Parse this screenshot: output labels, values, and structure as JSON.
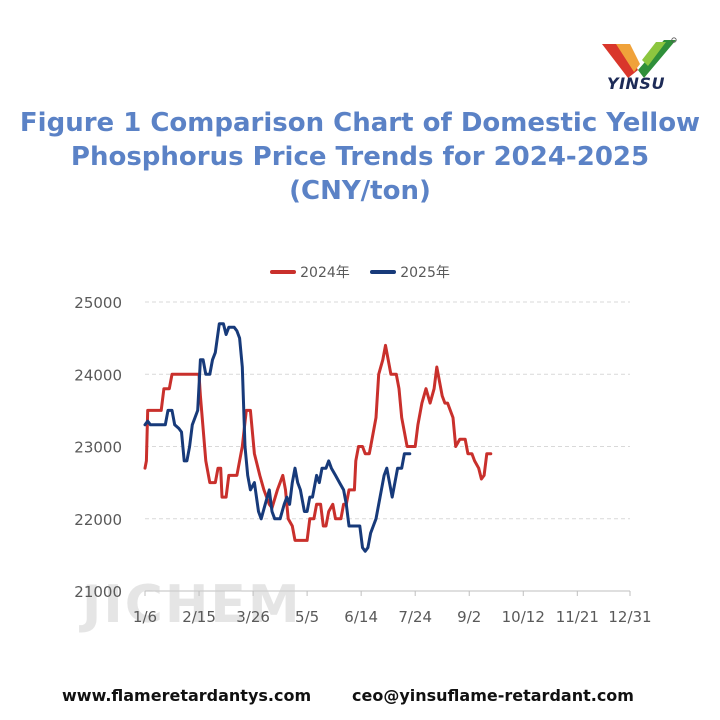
{
  "brand": {
    "name": "YINSU"
  },
  "title_lines": [
    "Figure 1  Comparison Chart of Domestic Yellow",
    "Phosphorus Price Trends for 2024-2025",
    "(CNY/ton)"
  ],
  "watermark": "JICHEM",
  "footer": {
    "website": "www.flameretardantys.com",
    "email": "ceo@yinsuflame-retardant.com"
  },
  "colors": {
    "series_2024": "#c9302c",
    "series_2025": "#173a7a",
    "title": "#5b82c6",
    "grid": "#d9d9d9",
    "axis_text": "#595959"
  },
  "chart_data": {
    "type": "line",
    "ylim": [
      21000,
      25000
    ],
    "yticks": [
      21000,
      22000,
      23000,
      24000,
      25000
    ],
    "xlim": [
      0,
      359
    ],
    "xticks": [
      {
        "label": "1/6",
        "day": 0
      },
      {
        "label": "2/15",
        "day": 40
      },
      {
        "label": "3/26",
        "day": 80
      },
      {
        "label": "5/5",
        "day": 120
      },
      {
        "label": "6/14",
        "day": 160
      },
      {
        "label": "7/24",
        "day": 200
      },
      {
        "label": "9/2",
        "day": 240
      },
      {
        "label": "10/12",
        "day": 280
      },
      {
        "label": "11/21",
        "day": 320
      },
      {
        "label": "12/31",
        "day": 359
      }
    ],
    "grid": "horizontal",
    "legend": "top",
    "series": [
      {
        "name": "2024年",
        "points": [
          [
            0,
            22700
          ],
          [
            1,
            22800
          ],
          [
            2,
            23500
          ],
          [
            12,
            23500
          ],
          [
            14,
            23800
          ],
          [
            18,
            23800
          ],
          [
            20,
            24000
          ],
          [
            40,
            24000
          ],
          [
            41,
            23700
          ],
          [
            45,
            22800
          ],
          [
            48,
            22500
          ],
          [
            52,
            22500
          ],
          [
            54,
            22700
          ],
          [
            56,
            22700
          ],
          [
            57,
            22300
          ],
          [
            60,
            22300
          ],
          [
            62,
            22600
          ],
          [
            68,
            22600
          ],
          [
            70,
            22800
          ],
          [
            72,
            23000
          ],
          [
            75,
            23500
          ],
          [
            78,
            23500
          ],
          [
            81,
            22900
          ],
          [
            85,
            22600
          ],
          [
            88,
            22400
          ],
          [
            92,
            22200
          ],
          [
            94,
            22150
          ],
          [
            98,
            22400
          ],
          [
            102,
            22600
          ],
          [
            104,
            22400
          ],
          [
            106,
            22000
          ],
          [
            109,
            21900
          ],
          [
            111,
            21700
          ],
          [
            120,
            21700
          ],
          [
            122,
            22000
          ],
          [
            125,
            22000
          ],
          [
            127,
            22200
          ],
          [
            130,
            22200
          ],
          [
            132,
            21900
          ],
          [
            134,
            21900
          ],
          [
            136,
            22100
          ],
          [
            139,
            22200
          ],
          [
            141,
            22000
          ],
          [
            145,
            22000
          ],
          [
            147,
            22200
          ],
          [
            149,
            22200
          ],
          [
            151,
            22400
          ],
          [
            155,
            22400
          ],
          [
            156,
            22800
          ],
          [
            158,
            23000
          ],
          [
            161,
            23000
          ],
          [
            163,
            22900
          ],
          [
            166,
            22900
          ],
          [
            168,
            23100
          ],
          [
            171,
            23400
          ],
          [
            173,
            24000
          ],
          [
            176,
            24200
          ],
          [
            178,
            24400
          ],
          [
            180,
            24200
          ],
          [
            182,
            24000
          ],
          [
            186,
            24000
          ],
          [
            188,
            23800
          ],
          [
            190,
            23400
          ],
          [
            192,
            23200
          ],
          [
            194,
            23000
          ],
          [
            200,
            23000
          ],
          [
            202,
            23300
          ],
          [
            205,
            23600
          ],
          [
            208,
            23800
          ],
          [
            211,
            23600
          ],
          [
            214,
            23800
          ],
          [
            216,
            24100
          ],
          [
            218,
            23900
          ],
          [
            220,
            23700
          ],
          [
            222,
            23600
          ],
          [
            224,
            23600
          ],
          [
            226,
            23500
          ],
          [
            228,
            23400
          ],
          [
            230,
            23000
          ],
          [
            233,
            23100
          ],
          [
            237,
            23100
          ],
          [
            239,
            22900
          ],
          [
            242,
            22900
          ],
          [
            244,
            22800
          ],
          [
            247,
            22700
          ],
          [
            249,
            22550
          ],
          [
            251,
            22600
          ],
          [
            253,
            22900
          ],
          [
            256,
            22900
          ]
        ]
      },
      {
        "name": "2025年",
        "points": [
          [
            0,
            23300
          ],
          [
            2,
            23350
          ],
          [
            4,
            23300
          ],
          [
            15,
            23300
          ],
          [
            17,
            23500
          ],
          [
            20,
            23500
          ],
          [
            22,
            23300
          ],
          [
            25,
            23250
          ],
          [
            27,
            23200
          ],
          [
            29,
            22800
          ],
          [
            31,
            22800
          ],
          [
            33,
            23000
          ],
          [
            35,
            23300
          ],
          [
            37,
            23400
          ],
          [
            39,
            23500
          ],
          [
            41,
            24200
          ],
          [
            43,
            24200
          ],
          [
            45,
            24000
          ],
          [
            48,
            24000
          ],
          [
            50,
            24200
          ],
          [
            52,
            24300
          ],
          [
            55,
            24700
          ],
          [
            58,
            24700
          ],
          [
            60,
            24550
          ],
          [
            62,
            24650
          ],
          [
            66,
            24650
          ],
          [
            68,
            24600
          ],
          [
            70,
            24500
          ],
          [
            72,
            24100
          ],
          [
            74,
            23000
          ],
          [
            76,
            22600
          ],
          [
            78,
            22400
          ],
          [
            81,
            22500
          ],
          [
            84,
            22100
          ],
          [
            86,
            22000
          ],
          [
            89,
            22200
          ],
          [
            92,
            22400
          ],
          [
            94,
            22100
          ],
          [
            96,
            22000
          ],
          [
            100,
            22000
          ],
          [
            103,
            22200
          ],
          [
            105,
            22300
          ],
          [
            107,
            22200
          ],
          [
            109,
            22500
          ],
          [
            111,
            22700
          ],
          [
            113,
            22500
          ],
          [
            115,
            22400
          ],
          [
            118,
            22100
          ],
          [
            120,
            22100
          ],
          [
            122,
            22300
          ],
          [
            124,
            22300
          ],
          [
            127,
            22600
          ],
          [
            129,
            22500
          ],
          [
            131,
            22700
          ],
          [
            134,
            22700
          ],
          [
            136,
            22800
          ],
          [
            138,
            22700
          ],
          [
            141,
            22600
          ],
          [
            144,
            22500
          ],
          [
            147,
            22400
          ],
          [
            149,
            22200
          ],
          [
            151,
            21900
          ],
          [
            159,
            21900
          ],
          [
            161,
            21600
          ],
          [
            163,
            21550
          ],
          [
            165,
            21600
          ],
          [
            167,
            21800
          ],
          [
            169,
            21900
          ],
          [
            171,
            22000
          ],
          [
            173,
            22200
          ],
          [
            175,
            22400
          ],
          [
            177,
            22600
          ],
          [
            179,
            22700
          ],
          [
            181,
            22500
          ],
          [
            183,
            22300
          ],
          [
            185,
            22500
          ],
          [
            187,
            22700
          ],
          [
            190,
            22700
          ],
          [
            192,
            22900
          ],
          [
            196,
            22900
          ]
        ]
      }
    ]
  }
}
